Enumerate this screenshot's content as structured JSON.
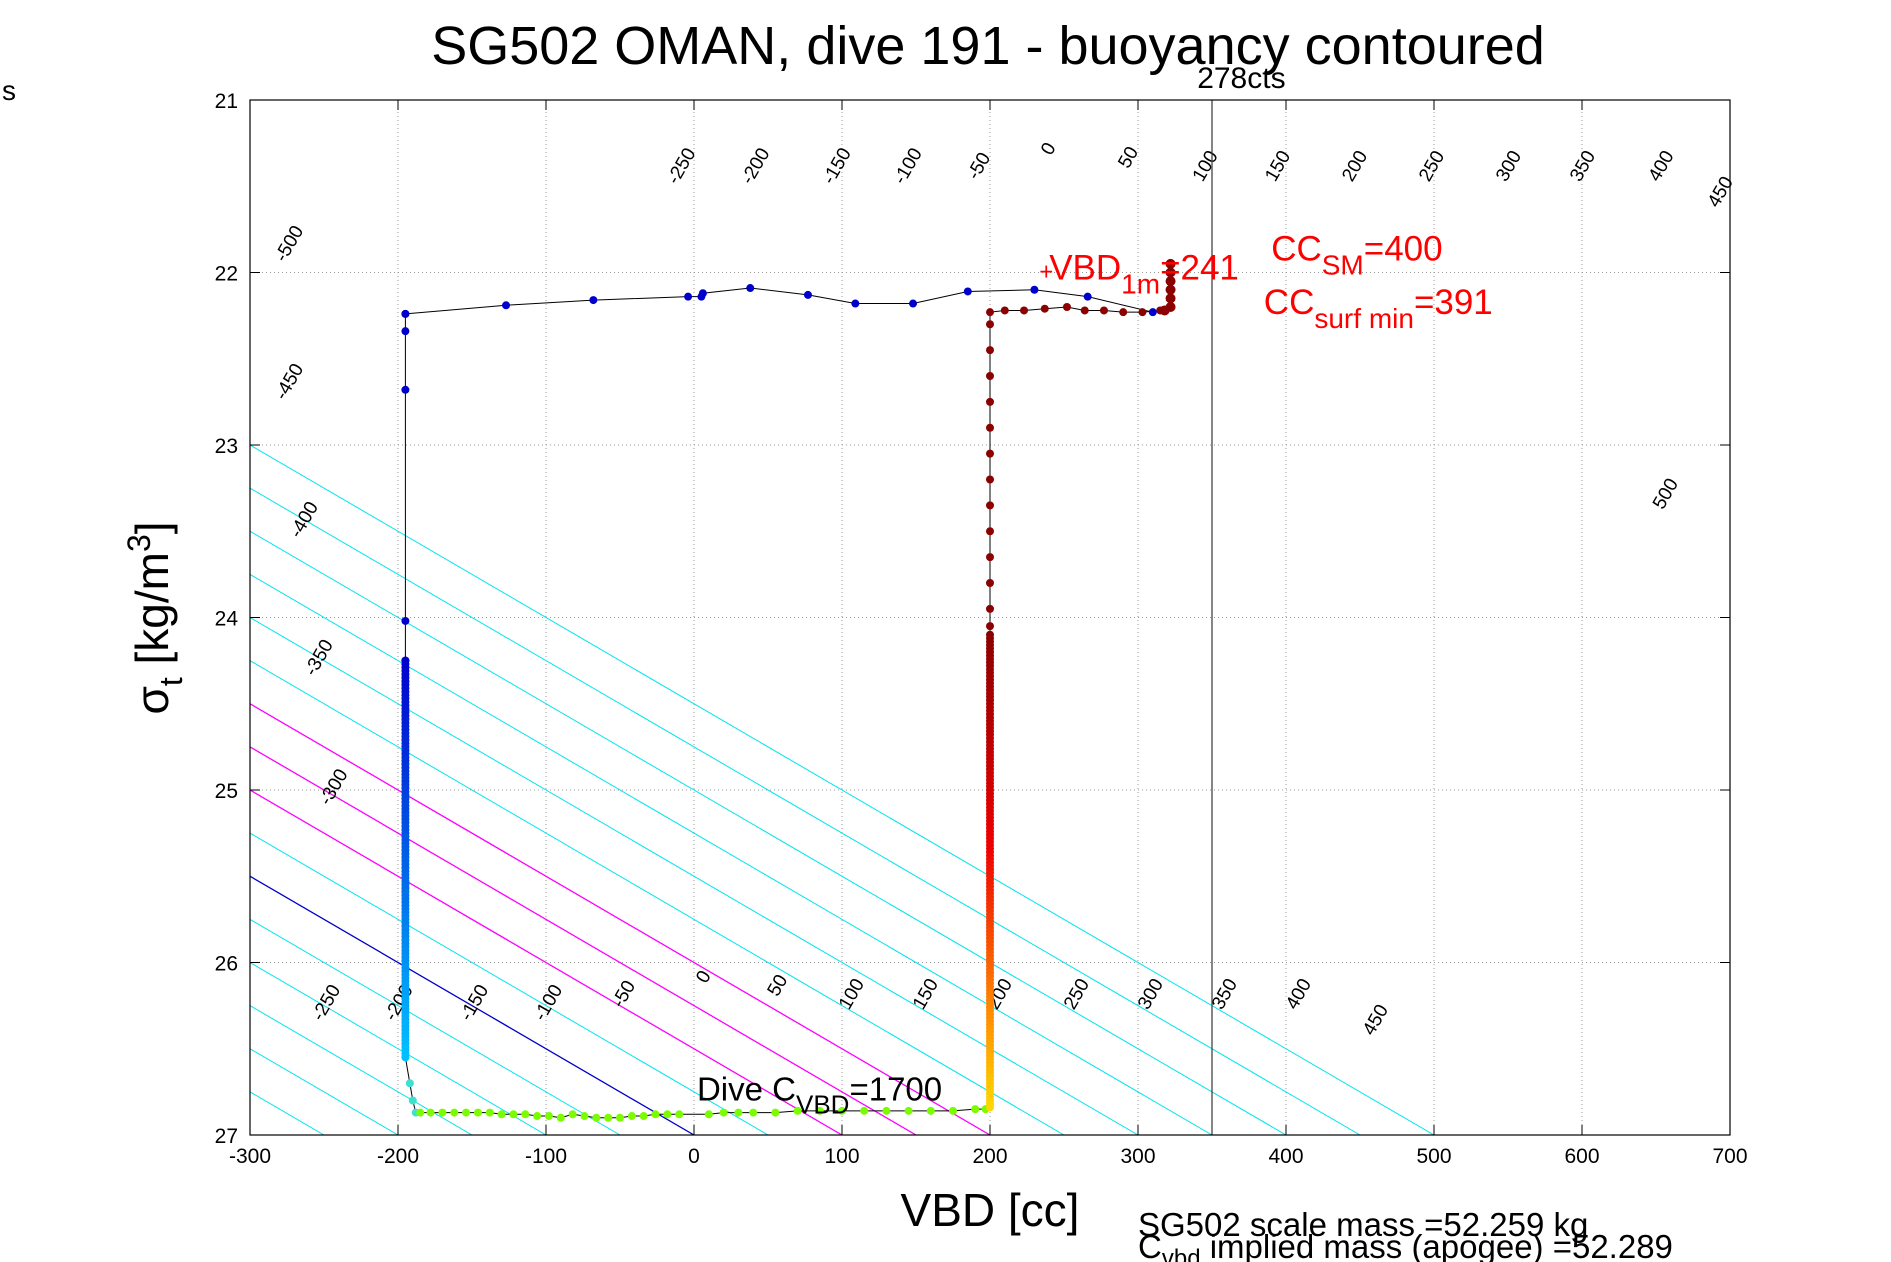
{
  "chart_data": {
    "type": "scatter",
    "title": "SG502 OMAN, dive 191 - buoyancy contoured",
    "xlabel": "VBD [cc]",
    "ylabel_main": "σ",
    "ylabel_sub": "t",
    "ylabel_rest": " [kg/m",
    "ylabel_sup": "3",
    "ylabel_end": "]",
    "corner_text": "s",
    "xlim": [
      -300,
      700
    ],
    "ylim": [
      21,
      27
    ],
    "y_inverted": true,
    "grid": true,
    "xticks": [
      -300,
      -200,
      -100,
      0,
      100,
      200,
      300,
      400,
      500,
      600,
      700
    ],
    "yticks": [
      21,
      22,
      23,
      24,
      25,
      26,
      27
    ],
    "contour_slope_cc_per_sigma": 200,
    "contours": {
      "color": "#00e5ee",
      "levels": [
        -500,
        -450,
        -400,
        -350,
        -300,
        -250,
        -200,
        -150,
        -100,
        -50,
        0,
        50,
        100,
        150,
        200,
        250,
        300,
        350,
        400,
        450,
        500
      ],
      "zero_line_color": "#0000cc",
      "magenta_levels": [
        100,
        150,
        200
      ],
      "magenta_color": "#ff00ff",
      "labels_top": [
        {
          "text": "-500",
          "x": -270,
          "y": 21.85
        },
        {
          "text": "-450",
          "x": -270,
          "y": 22.65
        },
        {
          "text": "-400",
          "x": -260,
          "y": 23.45
        },
        {
          "text": "-350",
          "x": -250,
          "y": 24.25
        },
        {
          "text": "-300",
          "x": -240,
          "y": 25.0
        },
        {
          "text": "-250",
          "x": -5,
          "y": 21.4
        },
        {
          "text": "-200",
          "x": 45,
          "y": 21.4
        },
        {
          "text": "-150",
          "x": 100,
          "y": 21.4
        },
        {
          "text": "-100",
          "x": 148,
          "y": 21.4
        },
        {
          "text": "-50",
          "x": 196,
          "y": 21.4
        },
        {
          "text": "0",
          "x": 243,
          "y": 21.3
        },
        {
          "text": "50",
          "x": 297,
          "y": 21.35
        },
        {
          "text": "100",
          "x": 349,
          "y": 21.4
        },
        {
          "text": "150",
          "x": 398,
          "y": 21.4
        },
        {
          "text": "200",
          "x": 450,
          "y": 21.4
        },
        {
          "text": "250",
          "x": 502,
          "y": 21.4
        },
        {
          "text": "300",
          "x": 554,
          "y": 21.4
        },
        {
          "text": "350",
          "x": 604,
          "y": 21.4
        },
        {
          "text": "400",
          "x": 657,
          "y": 21.4
        },
        {
          "text": "450",
          "x": 697,
          "y": 21.55
        },
        {
          "text": "500",
          "x": 660,
          "y": 23.3
        }
      ],
      "labels_bottom": [
        {
          "text": "-250",
          "x": -245,
          "y": 26.25
        },
        {
          "text": "-200",
          "x": -196,
          "y": 26.25
        },
        {
          "text": "-150",
          "x": -145,
          "y": 26.25
        },
        {
          "text": "-100",
          "x": -95,
          "y": 26.25
        },
        {
          "text": "-50",
          "x": -44,
          "y": 26.2
        },
        {
          "text": "0",
          "x": 10,
          "y": 26.1
        },
        {
          "text": "50",
          "x": 60,
          "y": 26.15
        },
        {
          "text": "100",
          "x": 110,
          "y": 26.2
        },
        {
          "text": "150",
          "x": 160,
          "y": 26.2
        },
        {
          "text": "200",
          "x": 210,
          "y": 26.2
        },
        {
          "text": "250",
          "x": 262,
          "y": 26.2
        },
        {
          "text": "300",
          "x": 312,
          "y": 26.2
        },
        {
          "text": "350",
          "x": 362,
          "y": 26.2
        },
        {
          "text": "400",
          "x": 412,
          "y": 26.2
        },
        {
          "text": "450",
          "x": 464,
          "y": 26.35
        }
      ]
    },
    "vertical_line": {
      "x": 350,
      "label": "278cts",
      "label_x": 340,
      "label_y": 20.93
    },
    "dive_points": {
      "color_top": "#0000cd",
      "color_bottom": "#00bfff",
      "upper": [
        {
          "x": -195,
          "y": 22.24
        },
        {
          "x": -195,
          "y": 22.34
        },
        {
          "x": -195,
          "y": 22.68
        },
        {
          "x": -195,
          "y": 24.02
        },
        {
          "x": -195,
          "y": 24.25
        }
      ],
      "column_x": -195,
      "column_y_start": 24.25,
      "column_y_end": 26.55,
      "curve_bottom": [
        {
          "x": -192,
          "y": 26.7
        },
        {
          "x": -190,
          "y": 26.8
        },
        {
          "x": -188,
          "y": 26.87
        }
      ]
    },
    "climb_points": {
      "column_x": 200,
      "column_y_start": 22.25,
      "column_y_end": 26.85,
      "color_top": "#8b0000",
      "color_mid": "#ee0000",
      "color_lower": "#ff8c00",
      "color_bottom": "#ffd700",
      "upper_sparse": [
        {
          "x": 200,
          "y": 22.3
        },
        {
          "x": 200,
          "y": 22.45
        },
        {
          "x": 200,
          "y": 22.6
        },
        {
          "x": 200,
          "y": 22.75
        },
        {
          "x": 200,
          "y": 22.9
        },
        {
          "x": 200,
          "y": 23.05
        },
        {
          "x": 200,
          "y": 23.2
        },
        {
          "x": 200,
          "y": 23.35
        },
        {
          "x": 200,
          "y": 23.5
        },
        {
          "x": 200,
          "y": 23.65
        },
        {
          "x": 200,
          "y": 23.8
        },
        {
          "x": 200,
          "y": 23.95
        },
        {
          "x": 200,
          "y": 24.05
        }
      ],
      "surface_row": [
        {
          "x": 200,
          "y": 22.23
        },
        {
          "x": 210,
          "y": 22.22
        },
        {
          "x": 223,
          "y": 22.22
        },
        {
          "x": 237,
          "y": 22.21
        },
        {
          "x": 252,
          "y": 22.2
        },
        {
          "x": 264,
          "y": 22.22
        },
        {
          "x": 277,
          "y": 22.22
        },
        {
          "x": 290,
          "y": 22.23
        },
        {
          "x": 303,
          "y": 22.23
        },
        {
          "x": 315,
          "y": 22.22
        }
      ],
      "surface_column": [
        {
          "x": 322,
          "y": 21.95
        },
        {
          "x": 322,
          "y": 22.0
        },
        {
          "x": 322,
          "y": 22.05
        },
        {
          "x": 322,
          "y": 22.1
        },
        {
          "x": 322,
          "y": 22.15
        },
        {
          "x": 322,
          "y": 22.2
        },
        {
          "x": 318,
          "y": 22.22
        }
      ]
    },
    "bottom_points": {
      "color": "#7cfc00",
      "points": [
        {
          "x": -185,
          "y": 26.87
        },
        {
          "x": -178,
          "y": 26.87
        },
        {
          "x": -170,
          "y": 26.87
        },
        {
          "x": -162,
          "y": 26.87
        },
        {
          "x": -154,
          "y": 26.87
        },
        {
          "x": -146,
          "y": 26.87
        },
        {
          "x": -138,
          "y": 26.87
        },
        {
          "x": -130,
          "y": 26.88
        },
        {
          "x": -122,
          "y": 26.88
        },
        {
          "x": -114,
          "y": 26.88
        },
        {
          "x": -106,
          "y": 26.89
        },
        {
          "x": -98,
          "y": 26.89
        },
        {
          "x": -90,
          "y": 26.9
        },
        {
          "x": -82,
          "y": 26.88
        },
        {
          "x": -74,
          "y": 26.89
        },
        {
          "x": -66,
          "y": 26.9
        },
        {
          "x": -58,
          "y": 26.9
        },
        {
          "x": -50,
          "y": 26.9
        },
        {
          "x": -42,
          "y": 26.89
        },
        {
          "x": -34,
          "y": 26.89
        },
        {
          "x": -26,
          "y": 26.88
        },
        {
          "x": -18,
          "y": 26.88
        },
        {
          "x": -10,
          "y": 26.88
        },
        {
          "x": 10,
          "y": 26.88
        },
        {
          "x": 20,
          "y": 26.87
        },
        {
          "x": 30,
          "y": 26.87
        },
        {
          "x": 40,
          "y": 26.87
        },
        {
          "x": 55,
          "y": 26.87
        },
        {
          "x": 70,
          "y": 26.86
        },
        {
          "x": 85,
          "y": 26.86
        },
        {
          "x": 100,
          "y": 26.86
        },
        {
          "x": 115,
          "y": 26.86
        },
        {
          "x": 130,
          "y": 26.86
        },
        {
          "x": 145,
          "y": 26.86
        },
        {
          "x": 160,
          "y": 26.86
        },
        {
          "x": 175,
          "y": 26.86
        },
        {
          "x": 190,
          "y": 26.85
        },
        {
          "x": 197,
          "y": 26.85
        }
      ]
    },
    "surface_track": {
      "color": "#0000cd",
      "points": [
        {
          "x": -195,
          "y": 22.24
        },
        {
          "x": -127,
          "y": 22.19
        },
        {
          "x": -68,
          "y": 22.16
        },
        {
          "x": -4,
          "y": 22.14
        },
        {
          "x": 5,
          "y": 22.14
        },
        {
          "x": 6,
          "y": 22.12
        },
        {
          "x": 38,
          "y": 22.09
        },
        {
          "x": 77,
          "y": 22.13
        },
        {
          "x": 109,
          "y": 22.18
        },
        {
          "x": 148,
          "y": 22.18
        },
        {
          "x": 185,
          "y": 22.11
        },
        {
          "x": 230,
          "y": 22.1
        },
        {
          "x": 266,
          "y": 22.14
        },
        {
          "x": 310,
          "y": 22.23
        }
      ]
    },
    "annotations": {
      "vbd1m_main": "VBD",
      "vbd1m_sub": "1m",
      "vbd1m_val": "=241",
      "vbd1m_x": 240,
      "vbd1m_y": 22.04,
      "ccsm_main": "CC",
      "ccsm_sub": "SM",
      "ccsm_val": "=400",
      "ccsm_x": 390,
      "ccsm_y": 21.93,
      "ccsurf_main": "CC",
      "ccsurf_sub": "surf min",
      "ccsurf_val": "=391",
      "ccsurf_x": 385,
      "ccsurf_y": 22.24,
      "dive_cvbd_main": "Dive C",
      "dive_cvbd_sub": "VBD",
      "dive_cvbd_val": "=1700",
      "dive_cvbd_x": 2,
      "dive_cvbd_y": 26.8
    },
    "footer": {
      "line1": "SG502 scale mass =52.259 kg",
      "line2_main": "C",
      "line2_sub": "vbd",
      "line2_rest": " implied mass (apogee) =52.289"
    }
  }
}
